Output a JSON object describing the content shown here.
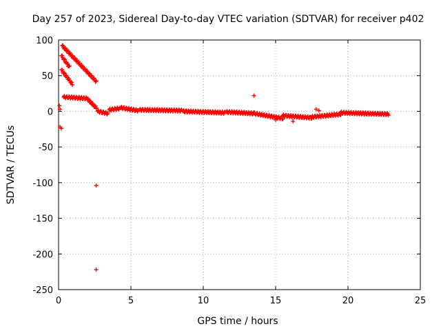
{
  "chart_data": {
    "type": "scatter",
    "title": "Day 257 of 2023, Sidereal Day-to-day VTEC variation (SDTVAR) for receiver p402",
    "xlabel": "GPS time / hours",
    "ylabel": "SDTVAR / TECUs",
    "xlim": [
      0,
      25
    ],
    "ylim": [
      -250,
      100
    ],
    "xticks": [
      0,
      5,
      10,
      15,
      20,
      25
    ],
    "yticks": [
      100,
      50,
      0,
      -50,
      -100,
      -150,
      -200,
      -250
    ],
    "grid": true,
    "marker": "+",
    "color": "#ff0000",
    "segments": [
      {
        "name": "arc-a",
        "x": [
          0.25,
          2.6
        ],
        "y": [
          92,
          42
        ]
      },
      {
        "name": "arc-b",
        "x": [
          0.2,
          0.75
        ],
        "y": [
          78,
          62
        ]
      },
      {
        "name": "arc-c",
        "x": [
          0.2,
          0.95
        ],
        "y": [
          58,
          38
        ]
      },
      {
        "name": "arc-d",
        "x": [
          0.35,
          2.0
        ],
        "y": [
          20,
          18
        ]
      },
      {
        "name": "arc-e",
        "x": [
          2.0,
          2.6
        ],
        "y": [
          17,
          5
        ]
      },
      {
        "name": "arc-f",
        "x": [
          2.7,
          3.4
        ],
        "y": [
          0,
          -3
        ]
      },
      {
        "name": "arc-g",
        "x": [
          3.5,
          4.2
        ],
        "y": [
          2,
          4
        ]
      },
      {
        "name": "arc-h",
        "x": [
          4.3,
          5.5
        ],
        "y": [
          5,
          1
        ]
      },
      {
        "name": "arc-i",
        "x": [
          5.6,
          8.5
        ],
        "y": [
          2,
          1
        ]
      },
      {
        "name": "arc-j",
        "x": [
          8.6,
          11.5
        ],
        "y": [
          0,
          -2
        ]
      },
      {
        "name": "arc-k",
        "x": [
          11.6,
          13.5
        ],
        "y": [
          -1,
          -3
        ]
      },
      {
        "name": "arc-l",
        "x": [
          13.5,
          15.5
        ],
        "y": [
          -3,
          -10
        ]
      },
      {
        "name": "arc-m",
        "x": [
          15.5,
          17.5
        ],
        "y": [
          -6,
          -9
        ]
      },
      {
        "name": "arc-n",
        "x": [
          17.5,
          19.5
        ],
        "y": [
          -8,
          -4
        ]
      },
      {
        "name": "arc-o",
        "x": [
          19.5,
          22.8
        ],
        "y": [
          -2,
          -4
        ]
      }
    ],
    "points": [
      {
        "x": 0.05,
        "y": 8
      },
      {
        "x": 0.1,
        "y": 3
      },
      {
        "x": 0.1,
        "y": -22
      },
      {
        "x": 0.2,
        "y": -24
      },
      {
        "x": 2.6,
        "y": 4
      },
      {
        "x": 2.6,
        "y": -104
      },
      {
        "x": 2.6,
        "y": -222
      },
      {
        "x": 13.5,
        "y": 22
      },
      {
        "x": 17.8,
        "y": 3
      },
      {
        "x": 18.0,
        "y": 1
      },
      {
        "x": 15.0,
        "y": -12
      },
      {
        "x": 16.2,
        "y": -14
      }
    ]
  }
}
